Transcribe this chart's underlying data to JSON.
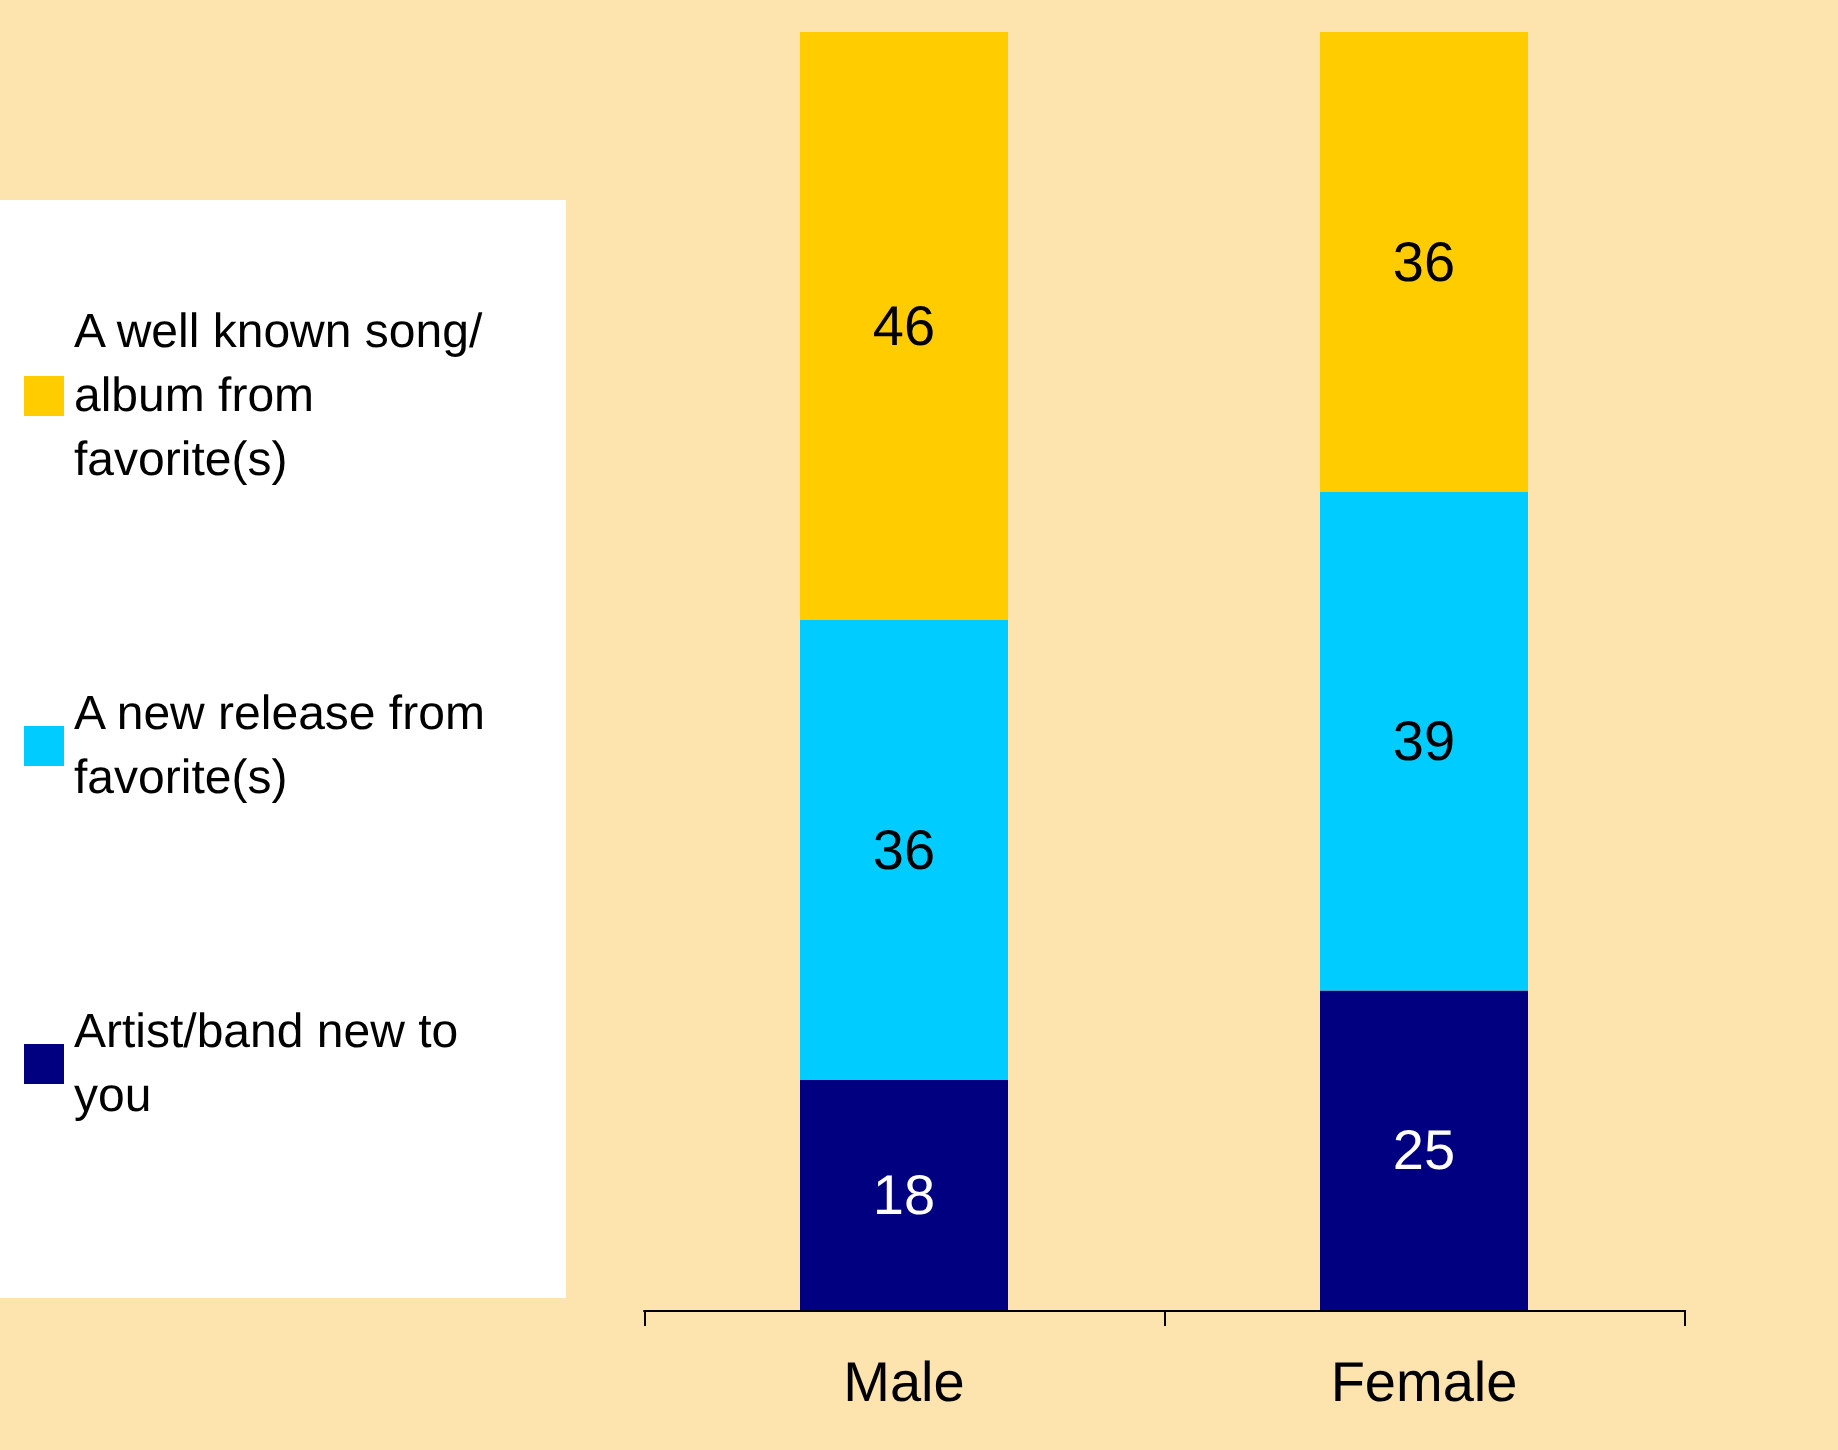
{
  "chart_data": {
    "type": "bar",
    "stacked": true,
    "categories": [
      "Male",
      "Female"
    ],
    "series": [
      {
        "name": "Artist/band new to you",
        "color": "#000080",
        "values": [
          18,
          25
        ]
      },
      {
        "name": "A new release from favorite(s)",
        "color": "#00ccff",
        "values": [
          36,
          39
        ]
      },
      {
        "name": "A well known song/album from favorite(s)",
        "color": "#ffcc00",
        "values": [
          46,
          36
        ]
      }
    ],
    "data_labels": true,
    "legend": "left"
  }
}
